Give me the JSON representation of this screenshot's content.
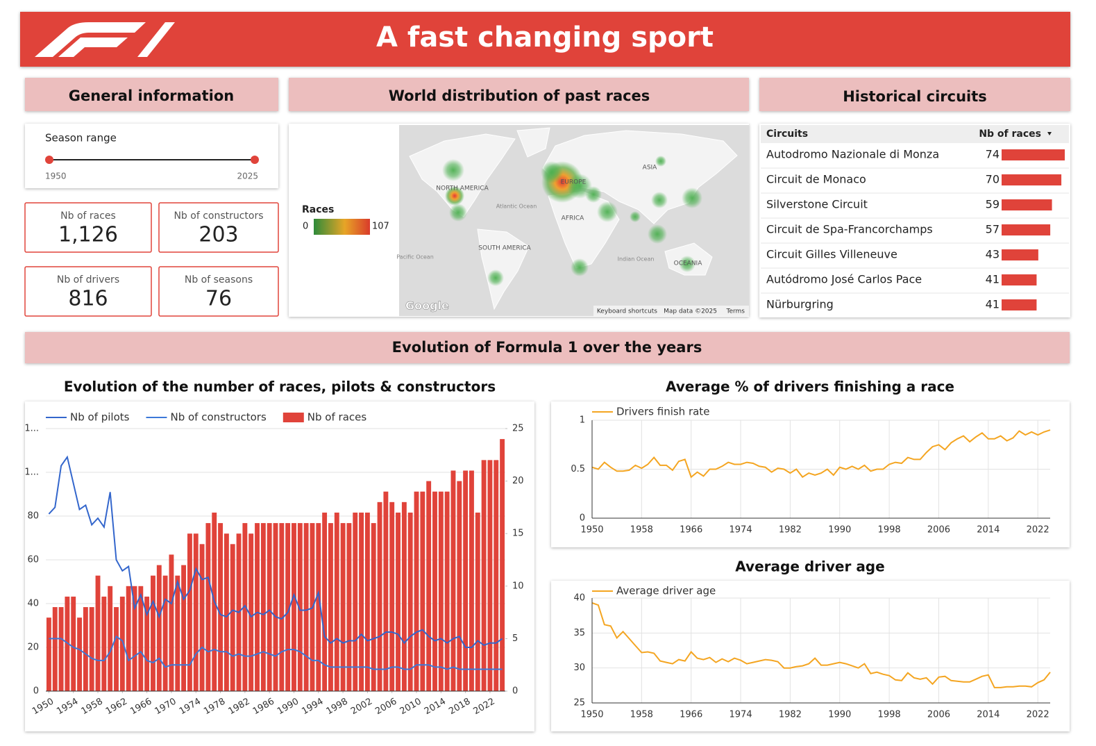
{
  "header": {
    "title": "A fast changing sport"
  },
  "general": {
    "title": "General information",
    "season_range": {
      "label": "Season range",
      "min": 1950,
      "max": 2025
    },
    "kpis": [
      {
        "label": "Nb of races",
        "value": "1,126"
      },
      {
        "label": "Nb of constructors",
        "value": 203
      },
      {
        "label": "Nb of drivers",
        "value": 816
      },
      {
        "label": "Nb of seasons",
        "value": 76
      }
    ]
  },
  "map": {
    "title": "World distribution of past races",
    "legend": {
      "title": "Races",
      "min": 0,
      "max": 107
    },
    "regions": [
      "NORTH AMERICA",
      "EUROPE",
      "ASIA",
      "AFRICA",
      "SOUTH AMERICA",
      "OCEANIA"
    ],
    "oceans": [
      "Atlantic Ocean",
      "Pacific Ocean",
      "Indian Ocean"
    ],
    "attribution": {
      "brand": "Google",
      "shortcuts": "Keyboard shortcuts",
      "data": "Map data ©2025",
      "terms": "Terms"
    }
  },
  "circuits": {
    "title": "Historical circuits",
    "columns": [
      "Circuits",
      "Nb of races"
    ],
    "rows": [
      {
        "name": "Autodromo Nazionale di Monza",
        "races": 74
      },
      {
        "name": "Circuit de Monaco",
        "races": 70
      },
      {
        "name": "Silverstone Circuit",
        "races": 59
      },
      {
        "name": "Circuit de Spa-Francorchamps",
        "races": 57
      },
      {
        "name": "Circuit Gilles Villeneuve",
        "races": 43
      },
      {
        "name": "Autódromo José Carlos Pace",
        "races": 41
      },
      {
        "name": "Nürburgring",
        "races": 41
      }
    ]
  },
  "evolution": {
    "title": "Evolution of Formula 1 over the years"
  },
  "chart_data": [
    {
      "type": "combo",
      "title": "Evolution of the number of races, pilots & constructors",
      "x": [
        1950,
        1951,
        1952,
        1953,
        1954,
        1955,
        1956,
        1957,
        1958,
        1959,
        1960,
        1961,
        1962,
        1963,
        1964,
        1965,
        1966,
        1967,
        1968,
        1969,
        1970,
        1971,
        1972,
        1973,
        1974,
        1975,
        1976,
        1977,
        1978,
        1979,
        1980,
        1981,
        1982,
        1983,
        1984,
        1985,
        1986,
        1987,
        1988,
        1989,
        1990,
        1991,
        1992,
        1993,
        1994,
        1995,
        1996,
        1997,
        1998,
        1999,
        2000,
        2001,
        2002,
        2003,
        2004,
        2005,
        2006,
        2007,
        2008,
        2009,
        2010,
        2011,
        2012,
        2013,
        2014,
        2015,
        2016,
        2017,
        2018,
        2019,
        2020,
        2021,
        2022,
        2023,
        2024
      ],
      "xlim": [
        1949.5,
        2024.5
      ],
      "xticks": [
        1950,
        1954,
        1958,
        1962,
        1966,
        1970,
        1974,
        1978,
        1982,
        1986,
        1990,
        1994,
        1998,
        2002,
        2006,
        2010,
        2014,
        2018,
        2022
      ],
      "ylim": [
        0,
        120
      ],
      "yticks": [
        0,
        20,
        40,
        60,
        80,
        {
          "value": 100,
          "label": "1..."
        },
        {
          "value": 120,
          "label": "1..."
        }
      ],
      "y2lim": [
        0,
        25
      ],
      "y2ticks": [
        0,
        5,
        10,
        15,
        20,
        25
      ],
      "grid": true,
      "xgrid": false,
      "series": [
        {
          "name": "Nb of pilots",
          "type": "line",
          "color": "#3366cc",
          "values": [
            81,
            84,
            103,
            107,
            95,
            83,
            85,
            76,
            79,
            75,
            91,
            60,
            55,
            57,
            38,
            44,
            35,
            41,
            34,
            42,
            40,
            50,
            42,
            46,
            56,
            51,
            52,
            41,
            35,
            34,
            37,
            36,
            39,
            34,
            36,
            35,
            37,
            34,
            33,
            36,
            44,
            37,
            37,
            38,
            45,
            25,
            22,
            24,
            22,
            23,
            23,
            26,
            23,
            24,
            25,
            27,
            27,
            26,
            22,
            25,
            27,
            28,
            25,
            23,
            24,
            22,
            24,
            25,
            20,
            20,
            23,
            21,
            22,
            22,
            24
          ]
        },
        {
          "name": "Nb of constructors",
          "type": "line",
          "color": "#3c78d8",
          "values": [
            24,
            24,
            24,
            22,
            20,
            19,
            17,
            15,
            14,
            14,
            18,
            25,
            23,
            14,
            16,
            18,
            14,
            13,
            15,
            11,
            12,
            12,
            12,
            12,
            17,
            20,
            18,
            19,
            18,
            18,
            16,
            17,
            16,
            16,
            17,
            18,
            17,
            16,
            18,
            19,
            19,
            18,
            16,
            14,
            14,
            12,
            11,
            11,
            11,
            11,
            11,
            11,
            11,
            10,
            10,
            10,
            11,
            11,
            10,
            10,
            12,
            12,
            12,
            11,
            11,
            10,
            11,
            10,
            10,
            10,
            10,
            10,
            10,
            10,
            10
          ]
        },
        {
          "name": "Nb of races",
          "type": "bar",
          "axis": "y2",
          "color": "#e0433a",
          "values": [
            7,
            8,
            8,
            9,
            9,
            7,
            8,
            8,
            11,
            9,
            10,
            8,
            9,
            10,
            10,
            10,
            9,
            11,
            12,
            11,
            13,
            11,
            12,
            15,
            15,
            14,
            16,
            17,
            16,
            15,
            14,
            15,
            16,
            15,
            16,
            16,
            16,
            16,
            16,
            16,
            16,
            16,
            16,
            16,
            16,
            17,
            16,
            17,
            16,
            16,
            17,
            17,
            17,
            16,
            18,
            19,
            18,
            17,
            18,
            17,
            19,
            19,
            20,
            19,
            19,
            19,
            21,
            20,
            21,
            21,
            17,
            22,
            22,
            22,
            24
          ]
        }
      ]
    },
    {
      "type": "line",
      "title": "Average % of drivers finishing a race",
      "x": [
        1950,
        1951,
        1952,
        1953,
        1954,
        1955,
        1956,
        1957,
        1958,
        1959,
        1960,
        1961,
        1962,
        1963,
        1964,
        1965,
        1966,
        1967,
        1968,
        1969,
        1970,
        1971,
        1972,
        1973,
        1974,
        1975,
        1976,
        1977,
        1978,
        1979,
        1980,
        1981,
        1982,
        1983,
        1984,
        1985,
        1986,
        1987,
        1988,
        1989,
        1990,
        1991,
        1992,
        1993,
        1994,
        1995,
        1996,
        1997,
        1998,
        1999,
        2000,
        2001,
        2002,
        2003,
        2004,
        2005,
        2006,
        2007,
        2008,
        2009,
        2010,
        2011,
        2012,
        2013,
        2014,
        2015,
        2016,
        2017,
        2018,
        2019,
        2020,
        2021,
        2022,
        2023,
        2024
      ],
      "xlim": [
        1950,
        2024
      ],
      "xticks": [
        1950,
        1958,
        1966,
        1974,
        1982,
        1990,
        1998,
        2006,
        2014,
        2022
      ],
      "ylim": [
        0,
        1
      ],
      "yticks": [
        0,
        0.5,
        1
      ],
      "grid": true,
      "xgrid": true,
      "series": [
        {
          "name": "Drivers finish rate",
          "color": "#f4a521",
          "values": [
            0.52,
            0.5,
            0.57,
            0.52,
            0.48,
            0.48,
            0.49,
            0.54,
            0.51,
            0.55,
            0.62,
            0.54,
            0.54,
            0.49,
            0.58,
            0.6,
            0.42,
            0.47,
            0.43,
            0.5,
            0.5,
            0.53,
            0.57,
            0.55,
            0.55,
            0.57,
            0.56,
            0.53,
            0.52,
            0.47,
            0.51,
            0.5,
            0.46,
            0.5,
            0.42,
            0.46,
            0.44,
            0.46,
            0.5,
            0.44,
            0.52,
            0.5,
            0.53,
            0.5,
            0.54,
            0.48,
            0.5,
            0.5,
            0.55,
            0.57,
            0.56,
            0.62,
            0.6,
            0.6,
            0.67,
            0.73,
            0.75,
            0.7,
            0.77,
            0.81,
            0.84,
            0.78,
            0.83,
            0.87,
            0.81,
            0.81,
            0.84,
            0.79,
            0.82,
            0.89,
            0.85,
            0.88,
            0.85,
            0.88,
            0.9
          ]
        }
      ]
    },
    {
      "type": "line",
      "title": "Average driver age",
      "x": [
        1950,
        1951,
        1952,
        1953,
        1954,
        1955,
        1956,
        1957,
        1958,
        1959,
        1960,
        1961,
        1962,
        1963,
        1964,
        1965,
        1966,
        1967,
        1968,
        1969,
        1970,
        1971,
        1972,
        1973,
        1974,
        1975,
        1976,
        1977,
        1978,
        1979,
        1980,
        1981,
        1982,
        1983,
        1984,
        1985,
        1986,
        1987,
        1988,
        1989,
        1990,
        1991,
        1992,
        1993,
        1994,
        1995,
        1996,
        1997,
        1998,
        1999,
        2000,
        2001,
        2002,
        2003,
        2004,
        2005,
        2006,
        2007,
        2008,
        2009,
        2010,
        2011,
        2012,
        2013,
        2014,
        2015,
        2016,
        2017,
        2018,
        2019,
        2020,
        2021,
        2022,
        2023,
        2024
      ],
      "xlim": [
        1950,
        2024
      ],
      "xticks": [
        1950,
        1958,
        1966,
        1974,
        1982,
        1990,
        1998,
        2006,
        2014,
        2022
      ],
      "ylim": [
        25,
        40
      ],
      "yticks": [
        25,
        30,
        35,
        40
      ],
      "grid": true,
      "xgrid": true,
      "series": [
        {
          "name": "Average driver age",
          "color": "#f4a521",
          "values": [
            39.3,
            39.0,
            36.2,
            36.0,
            34.3,
            35.2,
            34.2,
            33.2,
            32.2,
            32.3,
            32.1,
            31.0,
            30.8,
            30.6,
            31.2,
            31.0,
            32.3,
            31.4,
            31.2,
            31.5,
            30.8,
            31.3,
            30.9,
            31.4,
            31.1,
            30.6,
            30.8,
            31.0,
            31.2,
            31.1,
            30.9,
            30.0,
            30.0,
            30.2,
            30.3,
            30.6,
            31.4,
            30.4,
            30.4,
            30.6,
            30.8,
            30.6,
            30.3,
            30.0,
            30.6,
            29.2,
            29.4,
            29.1,
            28.9,
            28.3,
            28.2,
            29.3,
            28.6,
            28.4,
            28.6,
            27.7,
            28.7,
            28.8,
            28.2,
            28.1,
            28.0,
            28.0,
            28.4,
            28.8,
            29.0,
            27.2,
            27.2,
            27.3,
            27.3,
            27.4,
            27.4,
            27.3,
            27.9,
            28.3,
            29.4
          ]
        }
      ]
    }
  ]
}
